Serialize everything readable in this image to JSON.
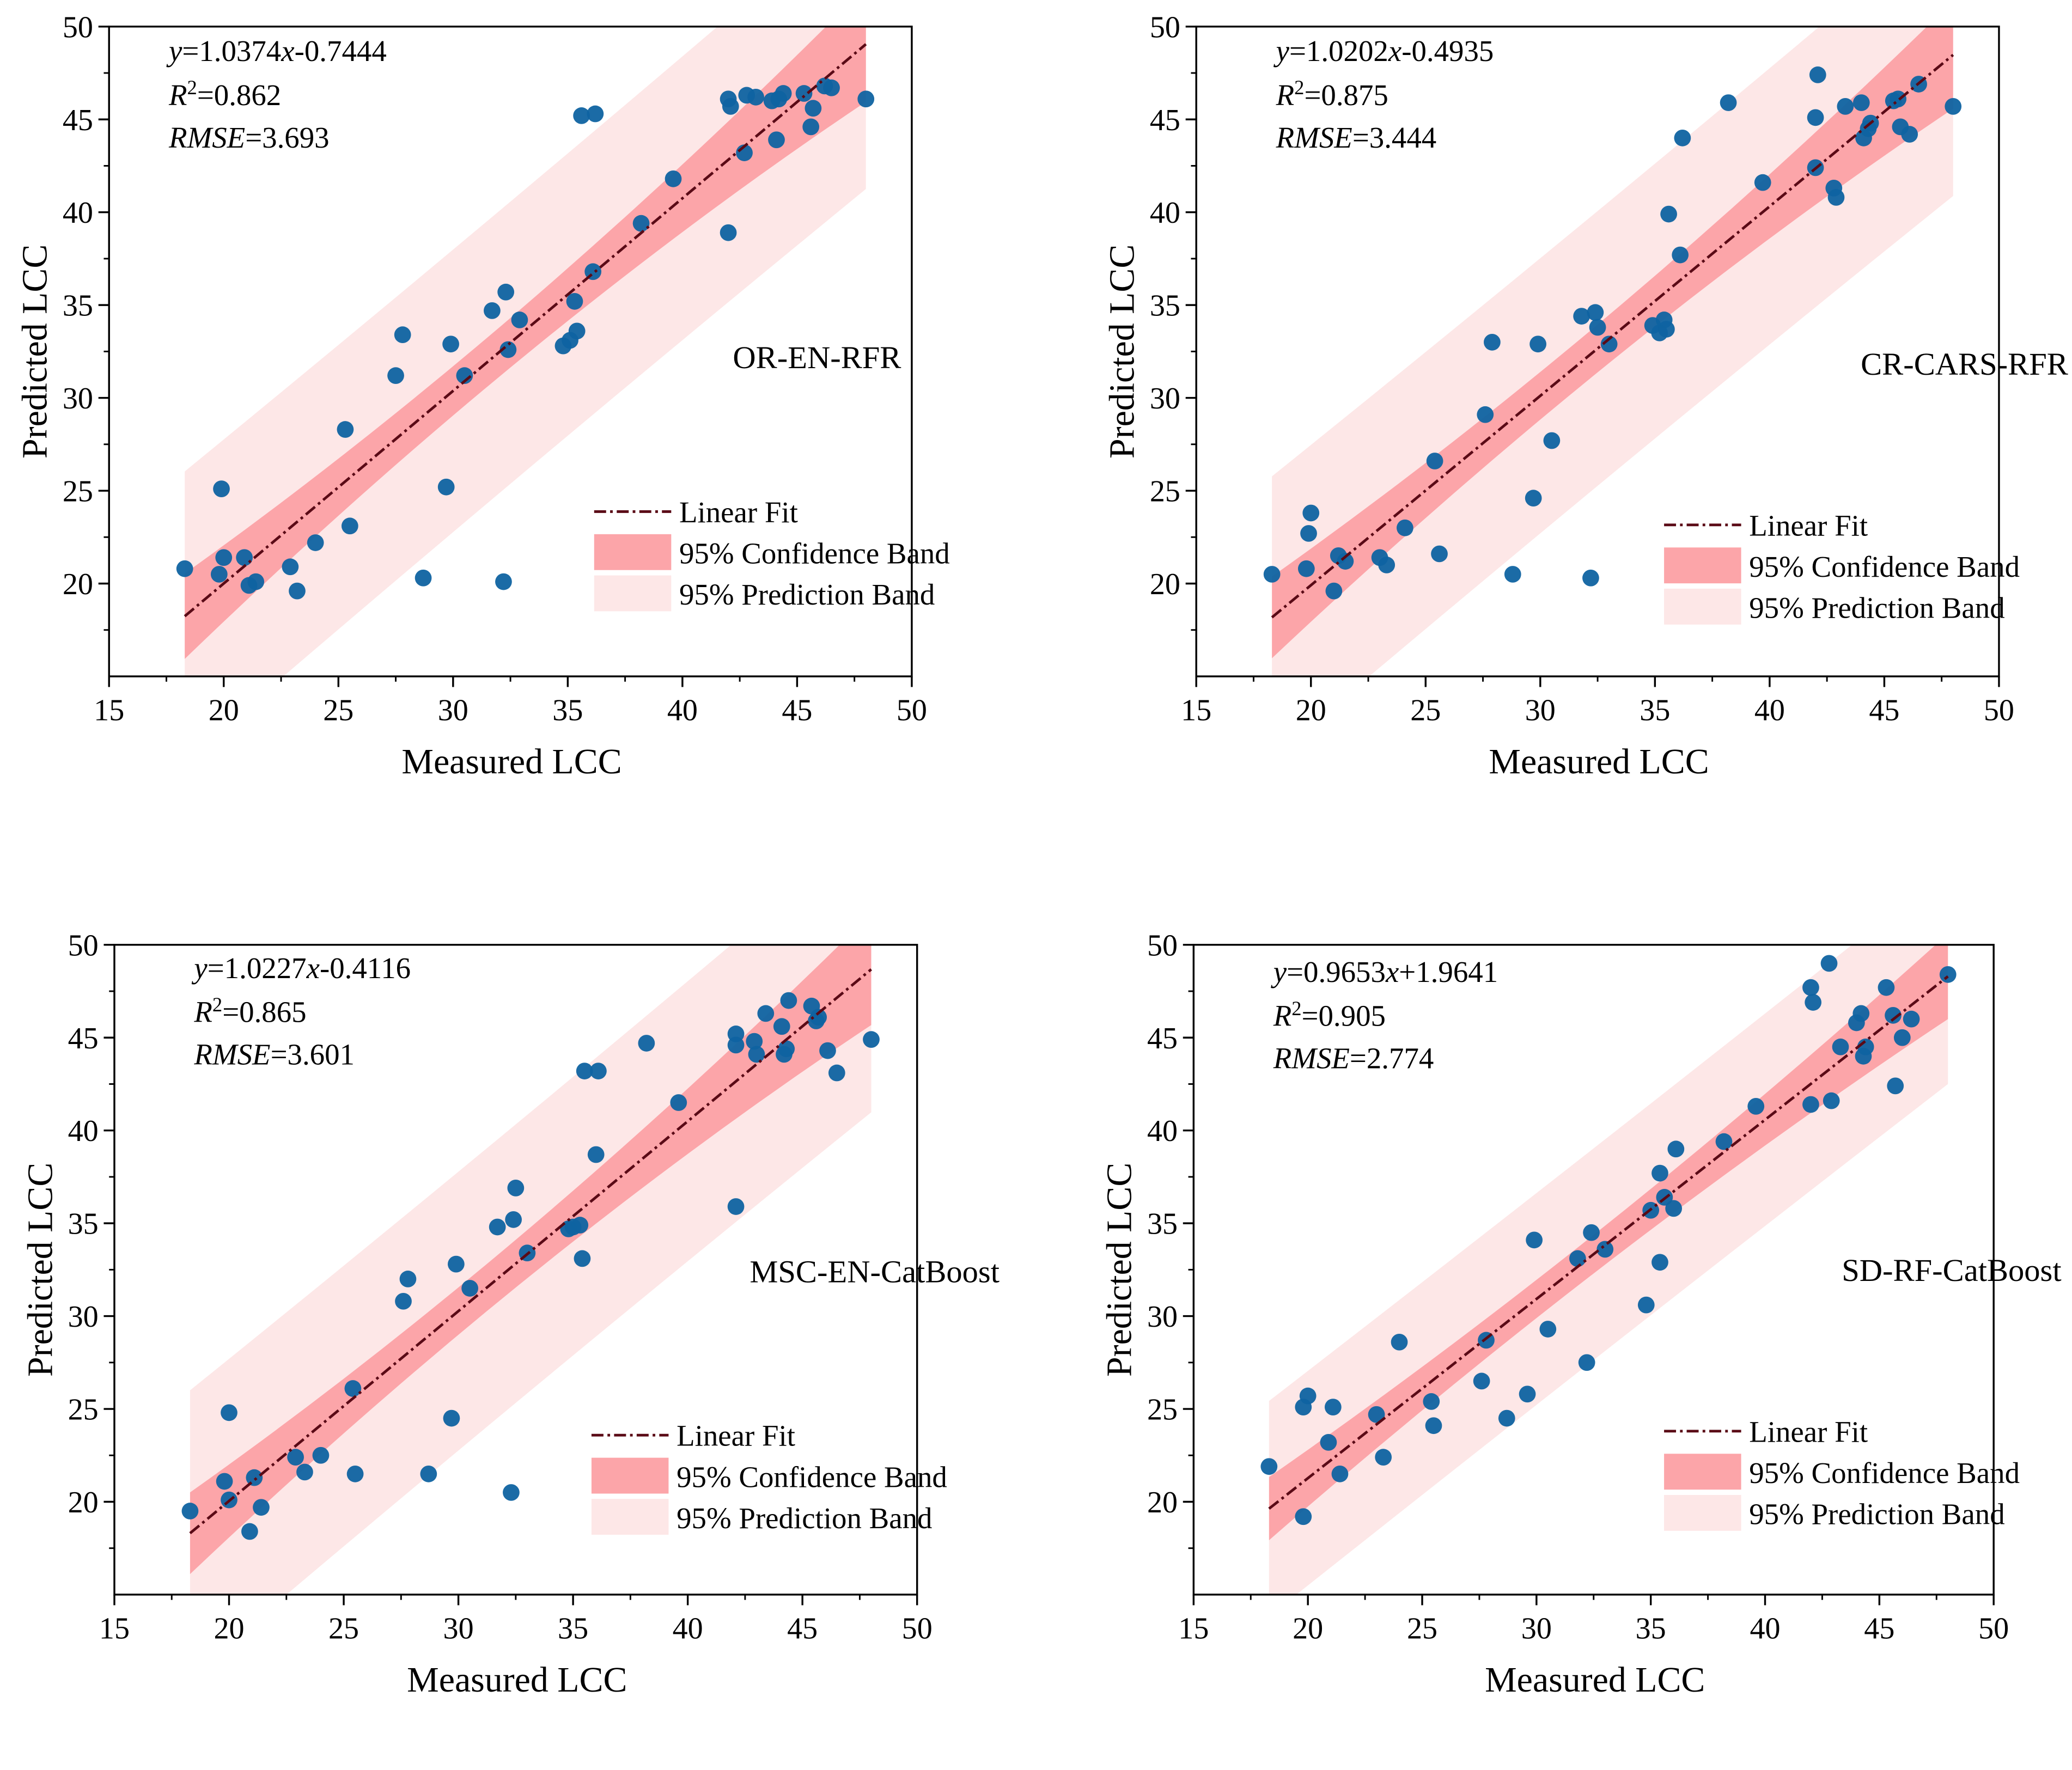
{
  "colors": {
    "points": "#0f63a1",
    "fit_line": "#5a0a16",
    "confidence_band": "#fca5a9",
    "prediction_band": "#fde7e7",
    "axis": "#000000"
  },
  "legend": {
    "fit_label": "Linear Fit",
    "confidence_label": "95% Confidence Band",
    "prediction_label": "95% Prediction Band"
  },
  "chart_data": [
    {
      "type": "scatter",
      "model": "OR-EN-RFR",
      "xlabel": "Measured LCC",
      "ylabel": "Predicted LCC",
      "xlim": [
        15,
        50
      ],
      "ylim": [
        15,
        50
      ],
      "xticks": [
        15,
        20,
        25,
        30,
        35,
        40,
        45,
        50
      ],
      "yticks": [
        20,
        25,
        30,
        35,
        40,
        45,
        50
      ],
      "equation": {
        "y": "y",
        "coef": "=1.0374",
        "x": "x",
        "rest": "-0.7444"
      },
      "r2": "=0.862",
      "rmse": "=3.693",
      "fit": {
        "slope": 1.0374,
        "intercept": -0.7444,
        "x_range": [
          18.3,
          48.0
        ]
      },
      "bands": {
        "confidence": [
          2.3,
          1.35,
          3.1
        ],
        "prediction": [
          7.8,
          7.6,
          7.8
        ]
      },
      "legend_position": "lower-right",
      "x": [
        18.3,
        19.8,
        20.0,
        19.9,
        20.9,
        21.1,
        21.4,
        22.9,
        23.2,
        24.0,
        25.3,
        25.5,
        27.5,
        27.8,
        28.7,
        29.7,
        29.9,
        30.5,
        31.7,
        32.2,
        32.3,
        32.4,
        32.9,
        34.8,
        35.1,
        35.3,
        35.4,
        35.6,
        36.1,
        36.2,
        38.2,
        39.6,
        42.0,
        42.0,
        42.1,
        42.7,
        42.8,
        43.2,
        43.9,
        44.1,
        44.2,
        44.4,
        45.3,
        45.6,
        45.7,
        46.2,
        46.5,
        48.0
      ],
      "y": [
        20.8,
        20.5,
        21.4,
        25.1,
        21.4,
        19.9,
        20.1,
        20.9,
        19.6,
        22.2,
        28.3,
        23.1,
        31.2,
        33.4,
        20.3,
        25.2,
        32.9,
        31.2,
        34.7,
        20.1,
        35.7,
        32.6,
        34.2,
        32.8,
        33.1,
        35.2,
        33.6,
        45.2,
        36.8,
        45.3,
        39.4,
        41.8,
        38.9,
        46.1,
        45.7,
        43.2,
        46.3,
        46.2,
        46.0,
        43.9,
        46.1,
        46.4,
        46.4,
        44.6,
        45.6,
        46.8,
        46.7,
        46.1
      ]
    },
    {
      "type": "scatter",
      "model": "CR-CARS-RFR",
      "xlabel": "Measured LCC",
      "ylabel": "Predicted LCC",
      "xlim": [
        15,
        50
      ],
      "ylim": [
        15,
        50
      ],
      "xticks": [
        15,
        20,
        25,
        30,
        35,
        40,
        45,
        50
      ],
      "yticks": [
        20,
        25,
        30,
        35,
        40,
        45,
        50
      ],
      "equation": {
        "y": "y",
        "coef": "=1.0202",
        "x": "x",
        "rest": "-0.4935"
      },
      "r2": "=0.875",
      "rmse": "=3.444",
      "fit": {
        "slope": 1.0202,
        "intercept": -0.4935,
        "x_range": [
          18.3,
          48.0
        ]
      },
      "bands": {
        "confidence": [
          2.2,
          1.3,
          2.9
        ],
        "prediction": [
          7.6,
          7.4,
          7.6
        ]
      },
      "legend_position": "lower-right",
      "x": [
        18.3,
        19.8,
        19.9,
        20.0,
        21.0,
        21.2,
        21.5,
        23.0,
        23.3,
        24.1,
        25.4,
        25.6,
        27.6,
        27.9,
        28.8,
        29.7,
        29.9,
        30.5,
        31.8,
        32.2,
        32.4,
        32.5,
        33.0,
        34.9,
        35.2,
        35.4,
        35.5,
        35.6,
        36.1,
        36.2,
        38.2,
        39.7,
        42.0,
        42.0,
        42.1,
        42.8,
        42.9,
        43.3,
        44.0,
        44.1,
        44.3,
        44.4,
        45.4,
        45.6,
        45.7,
        46.1,
        46.5,
        48.0
      ],
      "y": [
        20.5,
        20.8,
        22.7,
        23.8,
        19.6,
        21.5,
        21.2,
        21.4,
        21.0,
        23.0,
        26.6,
        21.6,
        29.1,
        33.0,
        20.5,
        24.6,
        32.9,
        27.7,
        34.4,
        20.3,
        34.6,
        33.8,
        32.9,
        33.9,
        33.5,
        34.2,
        33.7,
        39.9,
        37.7,
        44.0,
        45.9,
        41.6,
        45.1,
        42.4,
        47.4,
        41.3,
        40.8,
        45.7,
        45.9,
        44.0,
        44.5,
        44.8,
        46.0,
        46.1,
        44.6,
        44.2,
        46.9,
        45.7
      ]
    },
    {
      "type": "scatter",
      "model": "MSC-EN-CatBoost",
      "xlabel": "Measured LCC",
      "ylabel": "Predicted LCC",
      "xlim": [
        15,
        50
      ],
      "ylim": [
        15,
        50
      ],
      "xticks": [
        15,
        20,
        25,
        30,
        35,
        40,
        45,
        50
      ],
      "yticks": [
        20,
        25,
        30,
        35,
        40,
        45,
        50
      ],
      "equation": {
        "y": "y",
        "coef": "=1.0227",
        "x": "x",
        "rest": "-0.4116"
      },
      "r2": "=0.865",
      "rmse": "=3.601",
      "fit": {
        "slope": 1.0227,
        "intercept": -0.4116,
        "x_range": [
          18.3,
          48.0
        ]
      },
      "bands": {
        "confidence": [
          2.2,
          1.3,
          3.0
        ],
        "prediction": [
          7.7,
          7.5,
          7.7
        ]
      },
      "legend_position": "lower-right",
      "x": [
        18.3,
        19.8,
        20.0,
        20.0,
        20.9,
        21.1,
        21.4,
        22.9,
        23.3,
        24.0,
        25.4,
        25.5,
        27.6,
        27.8,
        28.7,
        29.7,
        29.9,
        30.5,
        31.7,
        32.3,
        32.4,
        32.5,
        33.0,
        34.8,
        35.0,
        35.3,
        35.4,
        35.5,
        36.0,
        36.1,
        38.2,
        39.6,
        42.1,
        42.1,
        42.1,
        42.9,
        43.0,
        43.4,
        44.1,
        44.2,
        44.3,
        44.4,
        45.4,
        45.6,
        45.7,
        46.1,
        46.5,
        48.0
      ],
      "y": [
        19.5,
        21.1,
        20.1,
        24.8,
        18.4,
        21.3,
        19.7,
        22.4,
        21.6,
        22.5,
        26.1,
        21.5,
        30.8,
        32.0,
        21.5,
        24.5,
        32.8,
        31.5,
        34.8,
        20.5,
        35.2,
        36.9,
        33.4,
        34.7,
        34.8,
        34.9,
        33.1,
        43.2,
        38.7,
        43.2,
        44.7,
        41.5,
        35.9,
        45.2,
        44.6,
        44.8,
        44.1,
        46.3,
        45.6,
        44.1,
        44.4,
        47.0,
        46.7,
        45.9,
        46.1,
        44.3,
        43.1,
        44.9
      ]
    },
    {
      "type": "scatter",
      "model": "SD-RF-CatBoost",
      "xlabel": "Measured LCC",
      "ylabel": "Predicted LCC",
      "xlim": [
        15,
        50
      ],
      "ylim": [
        15,
        50
      ],
      "xticks": [
        15,
        20,
        25,
        30,
        35,
        40,
        45,
        50
      ],
      "yticks": [
        20,
        25,
        30,
        35,
        40,
        45,
        50
      ],
      "equation": {
        "y": "y",
        "coef": "=0.9653",
        "x": "x",
        "rest": "+1.9641"
      },
      "r2": "=0.905",
      "rmse": "=2.774",
      "fit": {
        "slope": 0.9653,
        "intercept": 1.9641,
        "x_range": [
          18.3,
          48.0
        ]
      },
      "bands": {
        "confidence": [
          1.7,
          1.05,
          2.3
        ],
        "prediction": [
          5.8,
          5.7,
          5.8
        ]
      },
      "legend_position": "lower-right",
      "x": [
        18.3,
        19.8,
        19.8,
        20.0,
        20.9,
        21.1,
        21.4,
        23.0,
        23.3,
        24.0,
        25.4,
        25.5,
        27.6,
        27.8,
        28.7,
        29.6,
        29.9,
        30.5,
        31.8,
        32.2,
        32.4,
        33.0,
        34.8,
        35.0,
        35.4,
        35.4,
        35.6,
        36.0,
        36.1,
        38.2,
        39.6,
        42.0,
        42.0,
        42.1,
        42.8,
        42.9,
        43.3,
        44.0,
        44.2,
        44.3,
        44.4,
        45.3,
        45.6,
        45.7,
        46.0,
        46.4,
        48.0
      ],
      "y": [
        21.9,
        19.2,
        25.1,
        25.7,
        23.2,
        25.1,
        21.5,
        24.7,
        22.4,
        28.6,
        25.4,
        24.1,
        26.5,
        28.7,
        24.5,
        25.8,
        34.1,
        29.3,
        33.1,
        27.5,
        34.5,
        33.6,
        30.6,
        35.7,
        37.7,
        32.9,
        36.4,
        35.8,
        39.0,
        39.4,
        41.3,
        41.4,
        47.7,
        46.9,
        49.0,
        41.6,
        44.5,
        45.8,
        46.3,
        44.0,
        44.5,
        47.7,
        46.2,
        42.4,
        45.0,
        46.0,
        48.4
      ]
    }
  ]
}
